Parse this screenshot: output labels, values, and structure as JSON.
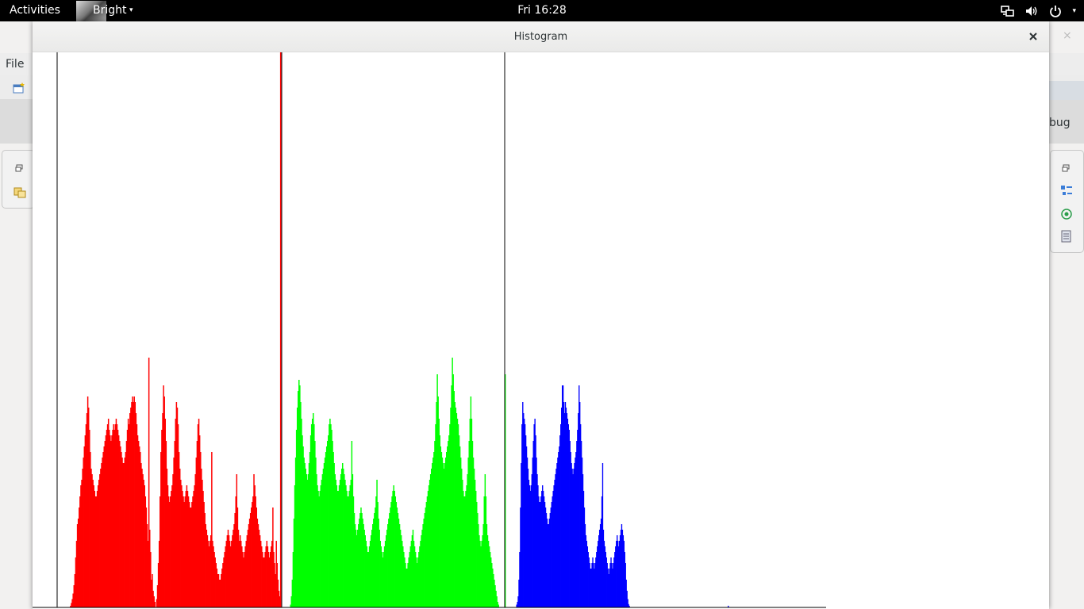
{
  "topbar": {
    "activities": "Activities",
    "app_name": "Bright",
    "app_menu_caret": "▾",
    "clock": "Fri 16:28",
    "status_icons": [
      "network-icon",
      "volume-icon",
      "power-icon"
    ],
    "status_caret": "▾"
  },
  "background_window": {
    "file_menu": "File",
    "debug_label": "bug",
    "close_glyph": "×"
  },
  "histogram_window": {
    "title": "Histogram",
    "close_glyph": "×"
  },
  "chart_data": {
    "type": "bar",
    "grid": false,
    "legend": "none",
    "x": "pixel intensity 0-255 per channel (no tick labels shown)",
    "xlim": [
      0,
      255
    ],
    "ylim": [
      0,
      1
    ],
    "series": [
      {
        "color": "#ff0000",
        "values": [
          0,
          0,
          0,
          0,
          0,
          0,
          0,
          0,
          0,
          0,
          0,
          0,
          0,
          0,
          0.003,
          0.008,
          0.015,
          0.025,
          0.04,
          0.06,
          0.09,
          0.12,
          0.15,
          0.16,
          0.18,
          0.2,
          0.22,
          0.23,
          0.25,
          0.27,
          0.29,
          0.31,
          0.33,
          0.35,
          0.38,
          0.36,
          0.32,
          0.28,
          0.25,
          0.24,
          0.23,
          0.22,
          0.21,
          0.2,
          0.2,
          0.21,
          0.22,
          0.23,
          0.24,
          0.25,
          0.26,
          0.27,
          0.28,
          0.29,
          0.3,
          0.31,
          0.32,
          0.33,
          0.34,
          0.32,
          0.31,
          0.3,
          0.31,
          0.32,
          0.33,
          0.32,
          0.33,
          0.34,
          0.33,
          0.32,
          0.31,
          0.3,
          0.29,
          0.28,
          0.27,
          0.26,
          0.26,
          0.27,
          0.28,
          0.3,
          0.32,
          0.34,
          0.33,
          0.35,
          0.36,
          0.37,
          0.38,
          0.37,
          0.38,
          0.37,
          0.35,
          0.33,
          0.31,
          0.3,
          0.29,
          0.28,
          0.26,
          0.25,
          0.24,
          0.23,
          0.22,
          0.2,
          0.18,
          0.15,
          0.12,
          0.45,
          0.14,
          0.1,
          0.05,
          0.06,
          0.03,
          0.02,
          0.01,
          0,
          0.015,
          0.04,
          0.08,
          0.12,
          0.2,
          0.28,
          0.32,
          0.35,
          0.4,
          0.38,
          0.34,
          0.3,
          0.25,
          0.22,
          0.2,
          0.19,
          0.2,
          0.21,
          0.22,
          0.24,
          0.27,
          0.3,
          0.34,
          0.37,
          0.36,
          0.33,
          0.28,
          0.25,
          0.23,
          0.22,
          0.21,
          0.2,
          0.19,
          0.2,
          0.21,
          0.22,
          0.21,
          0.2,
          0.19,
          0.18,
          0.18,
          0.19,
          0.2,
          0.21,
          0.22,
          0.24,
          0.27,
          0.3,
          0.33,
          0.34,
          0.31,
          0.28,
          0.25,
          0.23,
          0.21,
          0.19,
          0.17,
          0.15,
          0.14,
          0.13,
          0.12,
          0.11,
          0.12,
          0.13,
          0.28,
          0.12,
          0.11,
          0.1,
          0.09,
          0.08,
          0.07,
          0.06,
          0.06,
          0.05,
          0.05,
          0.06,
          0.07,
          0.08,
          0.09,
          0.1,
          0.11,
          0.12,
          0.13,
          0.14,
          0.13,
          0.12,
          0.11,
          0.12,
          0.13,
          0.14,
          0.15,
          0.17,
          0.2,
          0.24,
          0.18,
          0.14,
          0.12,
          0.13,
          0.12,
          0.11,
          0.1,
          0.09,
          0.1,
          0.11,
          0.12,
          0.13,
          0.14,
          0.15,
          0.16,
          0.17,
          0.18,
          0.19,
          0.2,
          0.24,
          0.22,
          0.2,
          0.18,
          0.16,
          0.15,
          0.14,
          0.13,
          0.12,
          0.11,
          0.1,
          0.09,
          0.09,
          0.1,
          0.11,
          0.12,
          0.11,
          0.1,
          0.09,
          0.1,
          0.11,
          0.12,
          0.18,
          0.1,
          0.08,
          0.06,
          0.12,
          0.08,
          0.05,
          0.03,
          0.02,
          1.0
        ]
      },
      {
        "color": "#00ff00",
        "values": [
          0,
          0,
          0,
          0,
          0,
          0,
          0,
          0,
          0,
          0.005,
          0.02,
          0.05,
          0.1,
          0.16,
          0.22,
          0.27,
          0.32,
          0.36,
          0.39,
          0.41,
          0.4,
          0.37,
          0.34,
          0.31,
          0.29,
          0.27,
          0.26,
          0.25,
          0.24,
          0.23,
          0.24,
          0.26,
          0.28,
          0.31,
          0.33,
          0.34,
          0.35,
          0.33,
          0.3,
          0.27,
          0.24,
          0.22,
          0.21,
          0.2,
          0.21,
          0.22,
          0.23,
          0.24,
          0.25,
          0.26,
          0.27,
          0.28,
          0.29,
          0.3,
          0.31,
          0.33,
          0.34,
          0.33,
          0.32,
          0.3,
          0.28,
          0.26,
          0.24,
          0.23,
          0.22,
          0.21,
          0.21,
          0.22,
          0.23,
          0.24,
          0.25,
          0.26,
          0.25,
          0.24,
          0.23,
          0.22,
          0.21,
          0.2,
          0.2,
          0.21,
          0.22,
          0.23,
          0.3,
          0.24,
          0.2,
          0.17,
          0.15,
          0.14,
          0.13,
          0.14,
          0.15,
          0.16,
          0.17,
          0.18,
          0.17,
          0.16,
          0.15,
          0.14,
          0.13,
          0.12,
          0.11,
          0.1,
          0.1,
          0.11,
          0.12,
          0.13,
          0.14,
          0.15,
          0.16,
          0.17,
          0.18,
          0.2,
          0.23,
          0.19,
          0.16,
          0.14,
          0.12,
          0.11,
          0.1,
          0.09,
          0.1,
          0.11,
          0.12,
          0.13,
          0.14,
          0.15,
          0.16,
          0.17,
          0.18,
          0.19,
          0.2,
          0.21,
          0.22,
          0.21,
          0.2,
          0.19,
          0.18,
          0.17,
          0.16,
          0.15,
          0.14,
          0.13,
          0.12,
          0.11,
          0.1,
          0.09,
          0.08,
          0.07,
          0.07,
          0.08,
          0.09,
          0.1,
          0.11,
          0.12,
          0.13,
          0.14,
          0.12,
          0.11,
          0.1,
          0.09,
          0.08,
          0.09,
          0.1,
          0.11,
          0.12,
          0.13,
          0.14,
          0.15,
          0.16,
          0.17,
          0.18,
          0.19,
          0.2,
          0.21,
          0.22,
          0.23,
          0.24,
          0.25,
          0.26,
          0.27,
          0.28,
          0.3,
          0.33,
          0.37,
          0.42,
          0.38,
          0.34,
          0.31,
          0.29,
          0.28,
          0.27,
          0.26,
          0.25,
          0.26,
          0.27,
          0.28,
          0.29,
          0.3,
          0.31,
          0.33,
          0.36,
          0.4,
          0.45,
          0.42,
          0.39,
          0.37,
          0.36,
          0.35,
          0.34,
          0.33,
          0.31,
          0.29,
          0.27,
          0.25,
          0.23,
          0.21,
          0.2,
          0.2,
          0.21,
          0.22,
          0.24,
          0.27,
          0.3,
          0.34,
          0.38,
          0.34,
          0.3,
          0.27,
          0.25,
          0.23,
          0.21,
          0.19,
          0.17,
          0.15,
          0.13,
          0.12,
          0.11,
          0.12,
          0.13,
          0.15,
          0.2,
          0.24,
          0.2,
          0.15,
          0.13,
          0.12,
          0.11,
          0.1,
          0.09,
          0.08,
          0.07,
          0.06,
          0.05,
          0.04,
          0.03,
          0.02,
          0.01,
          0.005,
          0,
          0,
          0,
          0,
          0,
          0,
          0,
          0.42
        ]
      },
      {
        "color": "#0000ff",
        "values": [
          0,
          0,
          0,
          0,
          0,
          0,
          0,
          0,
          0,
          0,
          0,
          0,
          0,
          0,
          0.005,
          0.01,
          0.02,
          0.05,
          0.1,
          0.18,
          0.26,
          0.33,
          0.37,
          0.35,
          0.34,
          0.33,
          0.31,
          0.29,
          0.27,
          0.25,
          0.23,
          0.22,
          0.21,
          0.22,
          0.24,
          0.27,
          0.3,
          0.33,
          0.34,
          0.31,
          0.27,
          0.24,
          0.22,
          0.2,
          0.19,
          0.19,
          0.2,
          0.21,
          0.22,
          0.21,
          0.2,
          0.19,
          0.18,
          0.17,
          0.16,
          0.15,
          0.15,
          0.16,
          0.17,
          0.18,
          0.19,
          0.2,
          0.21,
          0.22,
          0.23,
          0.24,
          0.25,
          0.26,
          0.27,
          0.28,
          0.29,
          0.31,
          0.33,
          0.36,
          0.4,
          0.4,
          0.37,
          0.35,
          0.37,
          0.36,
          0.35,
          0.34,
          0.33,
          0.32,
          0.3,
          0.28,
          0.26,
          0.25,
          0.24,
          0.25,
          0.26,
          0.27,
          0.28,
          0.3,
          0.32,
          0.35,
          0.4,
          0.37,
          0.33,
          0.3,
          0.27,
          0.24,
          0.21,
          0.18,
          0.15,
          0.13,
          0.12,
          0.11,
          0.1,
          0.09,
          0.08,
          0.07,
          0.07,
          0.08,
          0.09,
          0.08,
          0.07,
          0.08,
          0.09,
          0.1,
          0.11,
          0.12,
          0.13,
          0.14,
          0.15,
          0.16,
          0.2,
          0.26,
          0.14,
          0.12,
          0.11,
          0.1,
          0.09,
          0.08,
          0.07,
          0.06,
          0.07,
          0.08,
          0.09,
          0.08,
          0.07,
          0.08,
          0.09,
          0.1,
          0.11,
          0.12,
          0.13,
          0.12,
          0.11,
          0.12,
          0.13,
          0.14,
          0.15,
          0.14,
          0.13,
          0.12,
          0.1,
          0.08,
          0.05,
          0.03,
          0.015,
          0.006,
          0.003,
          0,
          0,
          0,
          0,
          0,
          0,
          0,
          0,
          0,
          0,
          0,
          0,
          0,
          0,
          0,
          0,
          0,
          0,
          0,
          0,
          0,
          0,
          0,
          0,
          0,
          0,
          0,
          0,
          0,
          0,
          0,
          0,
          0,
          0,
          0,
          0,
          0,
          0,
          0,
          0,
          0,
          0,
          0,
          0,
          0,
          0,
          0,
          0,
          0,
          0,
          0,
          0,
          0,
          0,
          0,
          0,
          0,
          0,
          0,
          0,
          0,
          0,
          0,
          0,
          0,
          0,
          0,
          0,
          0,
          0,
          0,
          0,
          0,
          0,
          0,
          0,
          0,
          0,
          0,
          0,
          0,
          0,
          0,
          0,
          0,
          0,
          0,
          0,
          0,
          0,
          0,
          0,
          0,
          0,
          0,
          0,
          0,
          0,
          0,
          0,
          0,
          0,
          0,
          0,
          0,
          0,
          0,
          0,
          0,
          0,
          0,
          0,
          0,
          0,
          0,
          0,
          0,
          0,
          0,
          0,
          0,
          0,
          0,
          0,
          0,
          0,
          0,
          0,
          0,
          0.003
        ]
      }
    ]
  }
}
